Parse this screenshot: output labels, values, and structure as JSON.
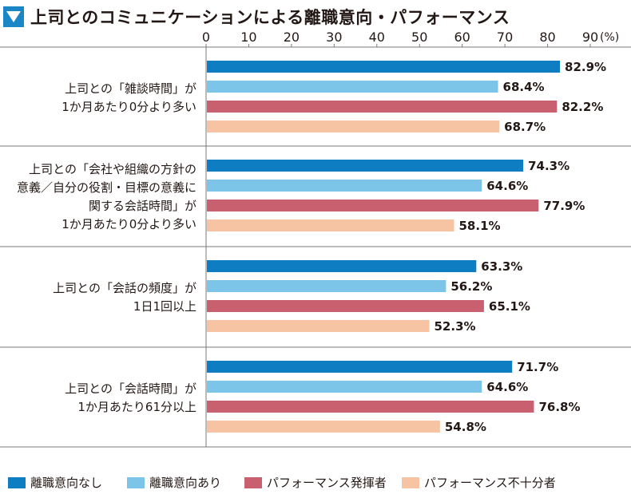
{
  "header": {
    "title": "上司とのコミュニケーションによる離職意向・パフォーマンス",
    "icon": "triangle-down-icon"
  },
  "chart_data": {
    "type": "bar",
    "orientation": "horizontal",
    "title": "上司とのコミュニケーションによる離職意向・パフォーマンス",
    "xlim": [
      0,
      90
    ],
    "ticks": [
      0,
      10,
      20,
      30,
      40,
      50,
      60,
      70,
      80,
      90
    ],
    "tick_labels": [
      "0",
      "10",
      "20",
      "30",
      "40",
      "50",
      "60",
      "70",
      "80",
      "90"
    ],
    "unit_label": "(%)",
    "grid": false,
    "legend_position": "bottom",
    "categories": [
      [
        "上司との「雑談時間」が",
        "1か月あたり0分より多い"
      ],
      [
        "上司との「会社や組織の方針の",
        "意義／自分の役割・目標の意義に",
        "関する会話時間」が",
        "1か月あたり0分より多い"
      ],
      [
        "上司との「会話の頻度」が",
        "1日1回以上"
      ],
      [
        "上司との「会話時間」が",
        "1か月あたり61分以上"
      ]
    ],
    "series": [
      {
        "name": "離職意向なし",
        "color": "#0f7dc2",
        "values": [
          82.9,
          74.3,
          63.3,
          71.7
        ],
        "labels": [
          "82.9%",
          "74.3%",
          "63.3%",
          "71.7%"
        ]
      },
      {
        "name": "離職意向あり",
        "color": "#7cc5e8",
        "values": [
          68.4,
          64.6,
          56.2,
          64.6
        ],
        "labels": [
          "68.4%",
          "64.6%",
          "56.2%",
          "64.6%"
        ]
      },
      {
        "name": "パフォーマンス発揮者",
        "color": "#c9606f",
        "values": [
          82.2,
          77.9,
          65.1,
          76.8
        ],
        "labels": [
          "82.2%",
          "77.9%",
          "65.1%",
          "76.8%"
        ]
      },
      {
        "name": "パフォーマンス不十分者",
        "color": "#f6c4a3",
        "values": [
          68.7,
          58.1,
          52.3,
          54.8
        ],
        "labels": [
          "68.7%",
          "58.1%",
          "52.3%",
          "54.8%"
        ]
      }
    ]
  }
}
